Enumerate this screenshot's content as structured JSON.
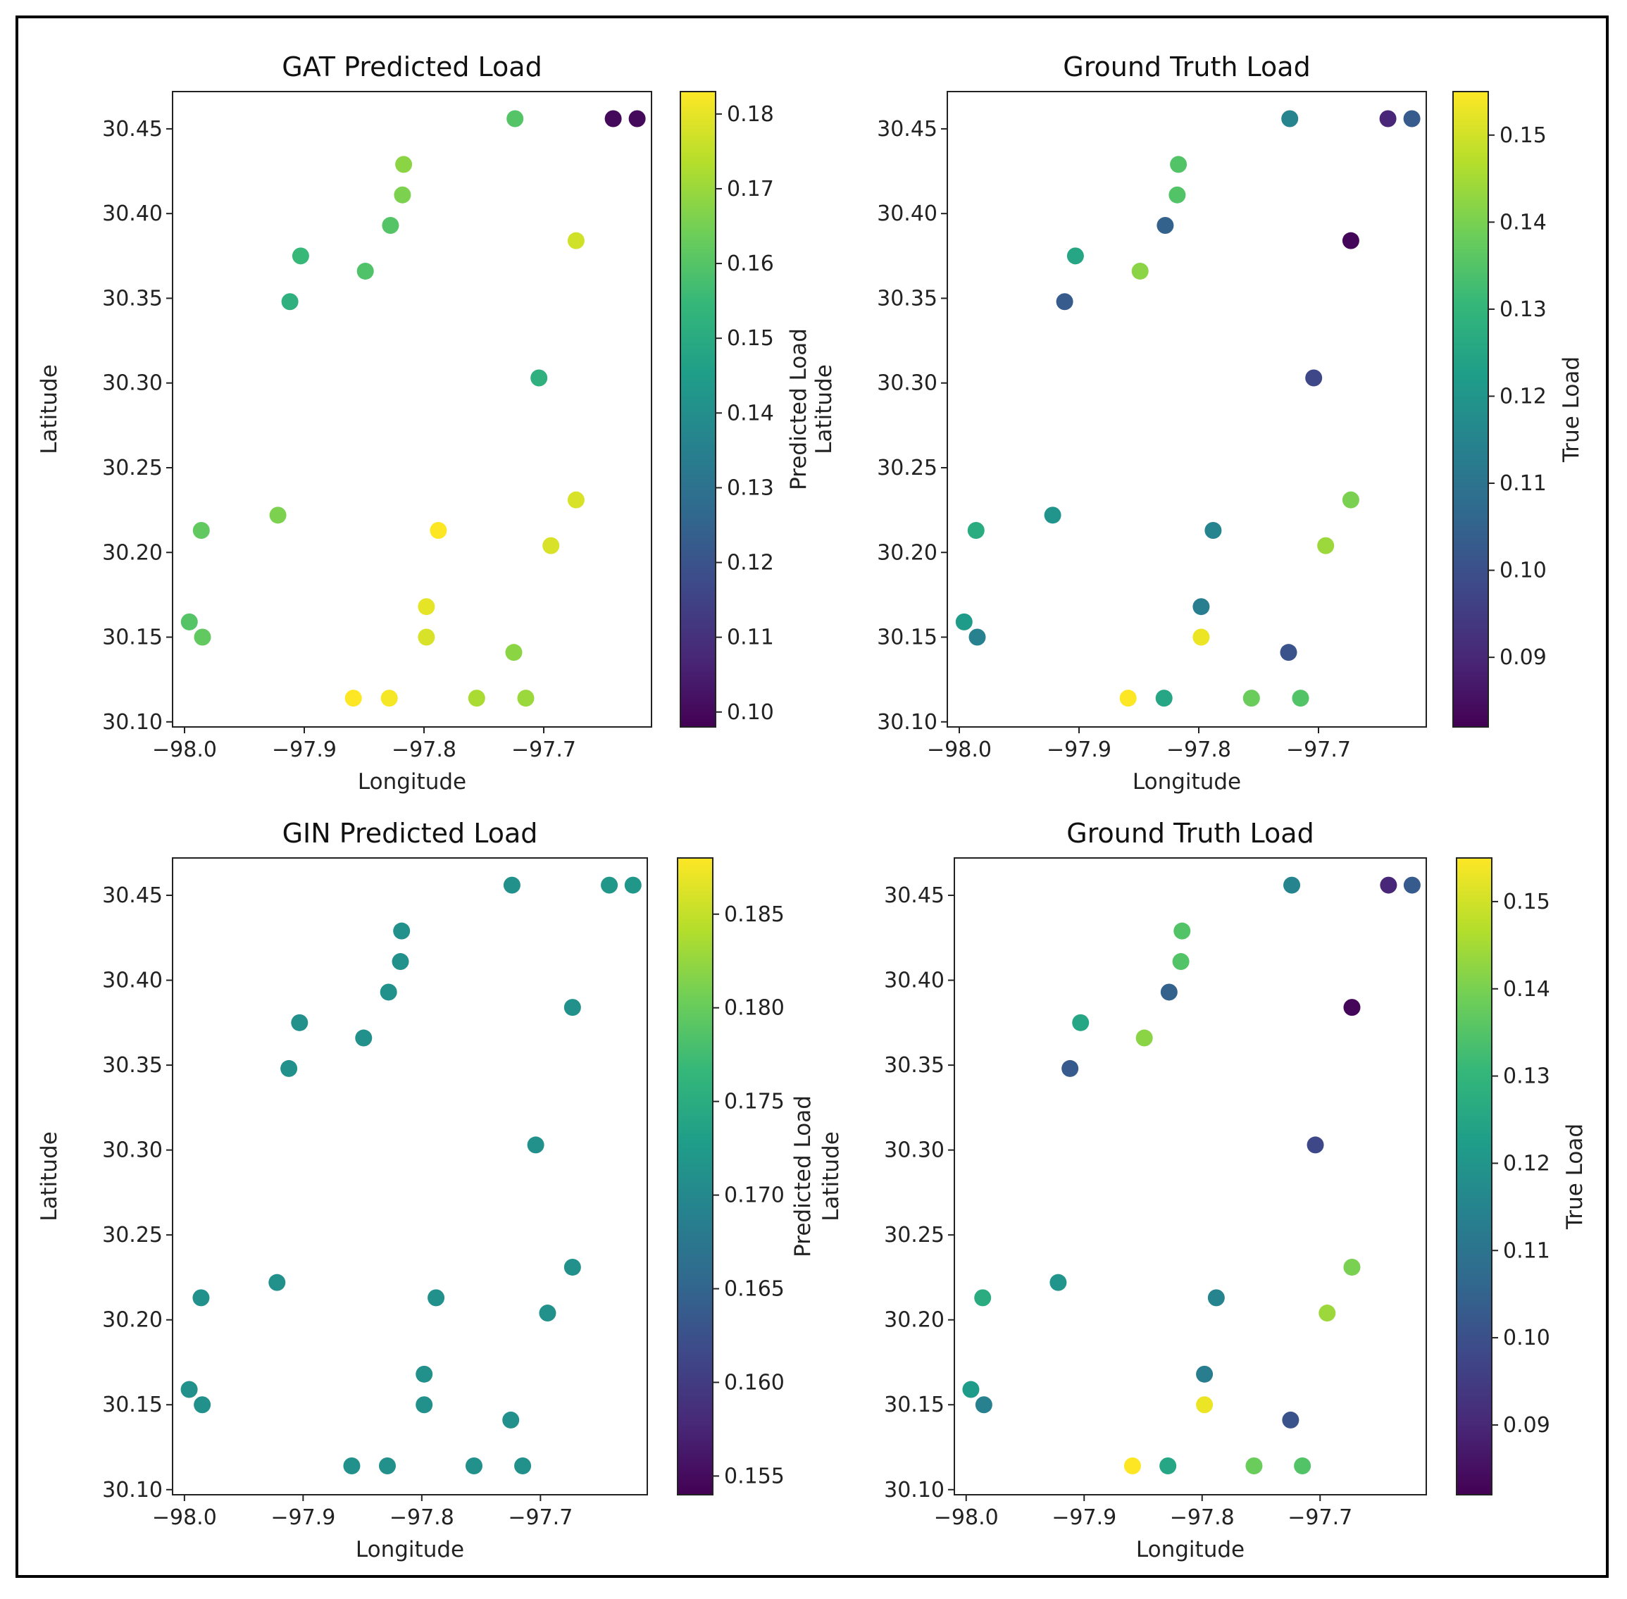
{
  "colormap_stops": [
    "#440154",
    "#482878",
    "#3e4989",
    "#31688e",
    "#26828e",
    "#1f9e89",
    "#35b779",
    "#6ece58",
    "#b5de2b",
    "#fde725"
  ],
  "chart_data": [
    {
      "type": "scatter",
      "title": "GAT Predicted Load",
      "xlabel": "Longitude",
      "ylabel": "Latitude",
      "xlim": [
        -98.01,
        -97.61
      ],
      "ylim": [
        30.097,
        30.472
      ],
      "xticks": [
        -98.0,
        -97.9,
        -97.8,
        -97.7
      ],
      "xtick_labels": [
        "−98.0",
        "−97.9",
        "−97.8",
        "−97.7"
      ],
      "yticks": [
        30.1,
        30.15,
        30.2,
        30.25,
        30.3,
        30.35,
        30.4,
        30.45
      ],
      "ytick_labels": [
        "30.10",
        "30.15",
        "30.20",
        "30.25",
        "30.30",
        "30.35",
        "30.40",
        "30.45"
      ],
      "colorbar": {
        "label": "Predicted Load",
        "range": [
          0.098,
          0.183
        ],
        "ticks": [
          0.1,
          0.11,
          0.12,
          0.13,
          0.14,
          0.15,
          0.16,
          0.17,
          0.18
        ],
        "tick_labels": [
          "0.10",
          "0.11",
          "0.12",
          "0.13",
          "0.14",
          "0.15",
          "0.16",
          "0.17",
          "0.18"
        ]
      },
      "points": [
        {
          "x": -97.724,
          "y": 30.456,
          "c": 0.16
        },
        {
          "x": -97.642,
          "y": 30.456,
          "c": 0.1
        },
        {
          "x": -97.622,
          "y": 30.456,
          "c": 0.1
        },
        {
          "x": -97.817,
          "y": 30.429,
          "c": 0.168
        },
        {
          "x": -97.818,
          "y": 30.411,
          "c": 0.166
        },
        {
          "x": -97.828,
          "y": 30.393,
          "c": 0.16
        },
        {
          "x": -97.673,
          "y": 30.384,
          "c": 0.177
        },
        {
          "x": -97.903,
          "y": 30.375,
          "c": 0.155
        },
        {
          "x": -97.849,
          "y": 30.366,
          "c": 0.159
        },
        {
          "x": -97.912,
          "y": 30.348,
          "c": 0.152
        },
        {
          "x": -97.704,
          "y": 30.303,
          "c": 0.152
        },
        {
          "x": -97.922,
          "y": 30.222,
          "c": 0.166
        },
        {
          "x": -97.673,
          "y": 30.231,
          "c": 0.178
        },
        {
          "x": -97.986,
          "y": 30.213,
          "c": 0.162
        },
        {
          "x": -97.788,
          "y": 30.213,
          "c": 0.183
        },
        {
          "x": -97.694,
          "y": 30.204,
          "c": 0.178
        },
        {
          "x": -97.798,
          "y": 30.168,
          "c": 0.18
        },
        {
          "x": -97.996,
          "y": 30.159,
          "c": 0.16
        },
        {
          "x": -97.985,
          "y": 30.15,
          "c": 0.162
        },
        {
          "x": -97.798,
          "y": 30.15,
          "c": 0.178
        },
        {
          "x": -97.725,
          "y": 30.141,
          "c": 0.168
        },
        {
          "x": -97.859,
          "y": 30.114,
          "c": 0.183
        },
        {
          "x": -97.829,
          "y": 30.114,
          "c": 0.182
        },
        {
          "x": -97.756,
          "y": 30.114,
          "c": 0.172
        },
        {
          "x": -97.715,
          "y": 30.114,
          "c": 0.17
        }
      ]
    },
    {
      "type": "scatter",
      "title": "Ground Truth Load",
      "xlabel": "Longitude",
      "ylabel": "Latitude",
      "xlim": [
        -98.01,
        -97.61
      ],
      "ylim": [
        30.097,
        30.472
      ],
      "xticks": [
        -98.0,
        -97.9,
        -97.8,
        -97.7
      ],
      "xtick_labels": [
        "−98.0",
        "−97.9",
        "−97.8",
        "−97.7"
      ],
      "yticks": [
        30.1,
        30.15,
        30.2,
        30.25,
        30.3,
        30.35,
        30.4,
        30.45
      ],
      "ytick_labels": [
        "30.10",
        "30.15",
        "30.20",
        "30.25",
        "30.30",
        "30.35",
        "30.40",
        "30.45"
      ],
      "colorbar": {
        "label": "True Load",
        "range": [
          0.082,
          0.155
        ],
        "ticks": [
          0.09,
          0.1,
          0.11,
          0.12,
          0.13,
          0.14,
          0.15
        ],
        "tick_labels": [
          "0.09",
          "0.10",
          "0.11",
          "0.12",
          "0.13",
          "0.14",
          "0.15"
        ]
      },
      "points": [
        {
          "x": -97.724,
          "y": 30.456,
          "c": 0.115
        },
        {
          "x": -97.642,
          "y": 30.456,
          "c": 0.09
        },
        {
          "x": -97.622,
          "y": 30.456,
          "c": 0.103
        },
        {
          "x": -97.817,
          "y": 30.429,
          "c": 0.135
        },
        {
          "x": -97.818,
          "y": 30.411,
          "c": 0.135
        },
        {
          "x": -97.828,
          "y": 30.393,
          "c": 0.105
        },
        {
          "x": -97.673,
          "y": 30.384,
          "c": 0.083
        },
        {
          "x": -97.903,
          "y": 30.375,
          "c": 0.125
        },
        {
          "x": -97.849,
          "y": 30.366,
          "c": 0.142
        },
        {
          "x": -97.912,
          "y": 30.348,
          "c": 0.103
        },
        {
          "x": -97.704,
          "y": 30.303,
          "c": 0.098
        },
        {
          "x": -97.922,
          "y": 30.222,
          "c": 0.12
        },
        {
          "x": -97.673,
          "y": 30.231,
          "c": 0.14
        },
        {
          "x": -97.986,
          "y": 30.213,
          "c": 0.127
        },
        {
          "x": -97.788,
          "y": 30.213,
          "c": 0.115
        },
        {
          "x": -97.694,
          "y": 30.204,
          "c": 0.144
        },
        {
          "x": -97.798,
          "y": 30.168,
          "c": 0.113
        },
        {
          "x": -97.996,
          "y": 30.159,
          "c": 0.122
        },
        {
          "x": -97.985,
          "y": 30.15,
          "c": 0.114
        },
        {
          "x": -97.798,
          "y": 30.15,
          "c": 0.153
        },
        {
          "x": -97.725,
          "y": 30.141,
          "c": 0.101
        },
        {
          "x": -97.859,
          "y": 30.114,
          "c": 0.155
        },
        {
          "x": -97.829,
          "y": 30.114,
          "c": 0.125
        },
        {
          "x": -97.756,
          "y": 30.114,
          "c": 0.138
        },
        {
          "x": -97.715,
          "y": 30.114,
          "c": 0.135
        }
      ]
    },
    {
      "type": "scatter",
      "title": "GIN Predicted Load",
      "xlabel": "Longitude",
      "ylabel": "Latitude",
      "xlim": [
        -98.01,
        -97.61
      ],
      "ylim": [
        30.097,
        30.472
      ],
      "xticks": [
        -98.0,
        -97.9,
        -97.8,
        -97.7
      ],
      "xtick_labels": [
        "−98.0",
        "−97.9",
        "−97.8",
        "−97.7"
      ],
      "yticks": [
        30.1,
        30.15,
        30.2,
        30.25,
        30.3,
        30.35,
        30.4,
        30.45
      ],
      "ytick_labels": [
        "30.10",
        "30.15",
        "30.20",
        "30.25",
        "30.30",
        "30.35",
        "30.40",
        "30.45"
      ],
      "colorbar": {
        "label": "Predicted Load",
        "range": [
          0.154,
          0.188
        ],
        "ticks": [
          0.155,
          0.16,
          0.165,
          0.17,
          0.175,
          0.18,
          0.185
        ],
        "tick_labels": [
          "0.155",
          "0.160",
          "0.165",
          "0.170",
          "0.175",
          "0.180",
          "0.185"
        ]
      },
      "points": [
        {
          "x": -97.724,
          "y": 30.456,
          "c": 0.171
        },
        {
          "x": -97.642,
          "y": 30.456,
          "c": 0.172
        },
        {
          "x": -97.622,
          "y": 30.456,
          "c": 0.172
        },
        {
          "x": -97.817,
          "y": 30.429,
          "c": 0.171
        },
        {
          "x": -97.818,
          "y": 30.411,
          "c": 0.171
        },
        {
          "x": -97.828,
          "y": 30.393,
          "c": 0.171
        },
        {
          "x": -97.673,
          "y": 30.384,
          "c": 0.171
        },
        {
          "x": -97.903,
          "y": 30.375,
          "c": 0.171
        },
        {
          "x": -97.849,
          "y": 30.366,
          "c": 0.171
        },
        {
          "x": -97.912,
          "y": 30.348,
          "c": 0.171
        },
        {
          "x": -97.704,
          "y": 30.303,
          "c": 0.171
        },
        {
          "x": -97.922,
          "y": 30.222,
          "c": 0.171
        },
        {
          "x": -97.673,
          "y": 30.231,
          "c": 0.171
        },
        {
          "x": -97.986,
          "y": 30.213,
          "c": 0.171
        },
        {
          "x": -97.788,
          "y": 30.213,
          "c": 0.171
        },
        {
          "x": -97.694,
          "y": 30.204,
          "c": 0.171
        },
        {
          "x": -97.798,
          "y": 30.168,
          "c": 0.171
        },
        {
          "x": -97.996,
          "y": 30.159,
          "c": 0.171
        },
        {
          "x": -97.985,
          "y": 30.15,
          "c": 0.171
        },
        {
          "x": -97.798,
          "y": 30.15,
          "c": 0.171
        },
        {
          "x": -97.725,
          "y": 30.141,
          "c": 0.171
        },
        {
          "x": -97.859,
          "y": 30.114,
          "c": 0.171
        },
        {
          "x": -97.829,
          "y": 30.114,
          "c": 0.171
        },
        {
          "x": -97.756,
          "y": 30.114,
          "c": 0.171
        },
        {
          "x": -97.715,
          "y": 30.114,
          "c": 0.171
        }
      ]
    },
    {
      "type": "scatter",
      "title": "Ground Truth Load",
      "xlabel": "Longitude",
      "ylabel": "Latitude",
      "xlim": [
        -98.01,
        -97.61
      ],
      "ylim": [
        30.097,
        30.472
      ],
      "xticks": [
        -98.0,
        -97.9,
        -97.8,
        -97.7
      ],
      "xtick_labels": [
        "−98.0",
        "−97.9",
        "−97.8",
        "−97.7"
      ],
      "yticks": [
        30.1,
        30.15,
        30.2,
        30.25,
        30.3,
        30.35,
        30.4,
        30.45
      ],
      "ytick_labels": [
        "30.10",
        "30.15",
        "30.20",
        "30.25",
        "30.30",
        "30.35",
        "30.40",
        "30.45"
      ],
      "colorbar": {
        "label": "True Load",
        "range": [
          0.082,
          0.155
        ],
        "ticks": [
          0.09,
          0.1,
          0.11,
          0.12,
          0.13,
          0.14,
          0.15
        ],
        "tick_labels": [
          "0.09",
          "0.10",
          "0.11",
          "0.12",
          "0.13",
          "0.14",
          "0.15"
        ]
      },
      "points": [
        {
          "x": -97.724,
          "y": 30.456,
          "c": 0.115
        },
        {
          "x": -97.642,
          "y": 30.456,
          "c": 0.09
        },
        {
          "x": -97.622,
          "y": 30.456,
          "c": 0.103
        },
        {
          "x": -97.817,
          "y": 30.429,
          "c": 0.135
        },
        {
          "x": -97.818,
          "y": 30.411,
          "c": 0.135
        },
        {
          "x": -97.828,
          "y": 30.393,
          "c": 0.105
        },
        {
          "x": -97.673,
          "y": 30.384,
          "c": 0.083
        },
        {
          "x": -97.903,
          "y": 30.375,
          "c": 0.125
        },
        {
          "x": -97.849,
          "y": 30.366,
          "c": 0.142
        },
        {
          "x": -97.912,
          "y": 30.348,
          "c": 0.103
        },
        {
          "x": -97.704,
          "y": 30.303,
          "c": 0.098
        },
        {
          "x": -97.922,
          "y": 30.222,
          "c": 0.12
        },
        {
          "x": -97.673,
          "y": 30.231,
          "c": 0.14
        },
        {
          "x": -97.986,
          "y": 30.213,
          "c": 0.127
        },
        {
          "x": -97.788,
          "y": 30.213,
          "c": 0.115
        },
        {
          "x": -97.694,
          "y": 30.204,
          "c": 0.144
        },
        {
          "x": -97.798,
          "y": 30.168,
          "c": 0.113
        },
        {
          "x": -97.996,
          "y": 30.159,
          "c": 0.122
        },
        {
          "x": -97.985,
          "y": 30.15,
          "c": 0.114
        },
        {
          "x": -97.798,
          "y": 30.15,
          "c": 0.153
        },
        {
          "x": -97.725,
          "y": 30.141,
          "c": 0.101
        },
        {
          "x": -97.859,
          "y": 30.114,
          "c": 0.155
        },
        {
          "x": -97.829,
          "y": 30.114,
          "c": 0.125
        },
        {
          "x": -97.756,
          "y": 30.114,
          "c": 0.138
        },
        {
          "x": -97.715,
          "y": 30.114,
          "c": 0.135
        }
      ]
    }
  ]
}
